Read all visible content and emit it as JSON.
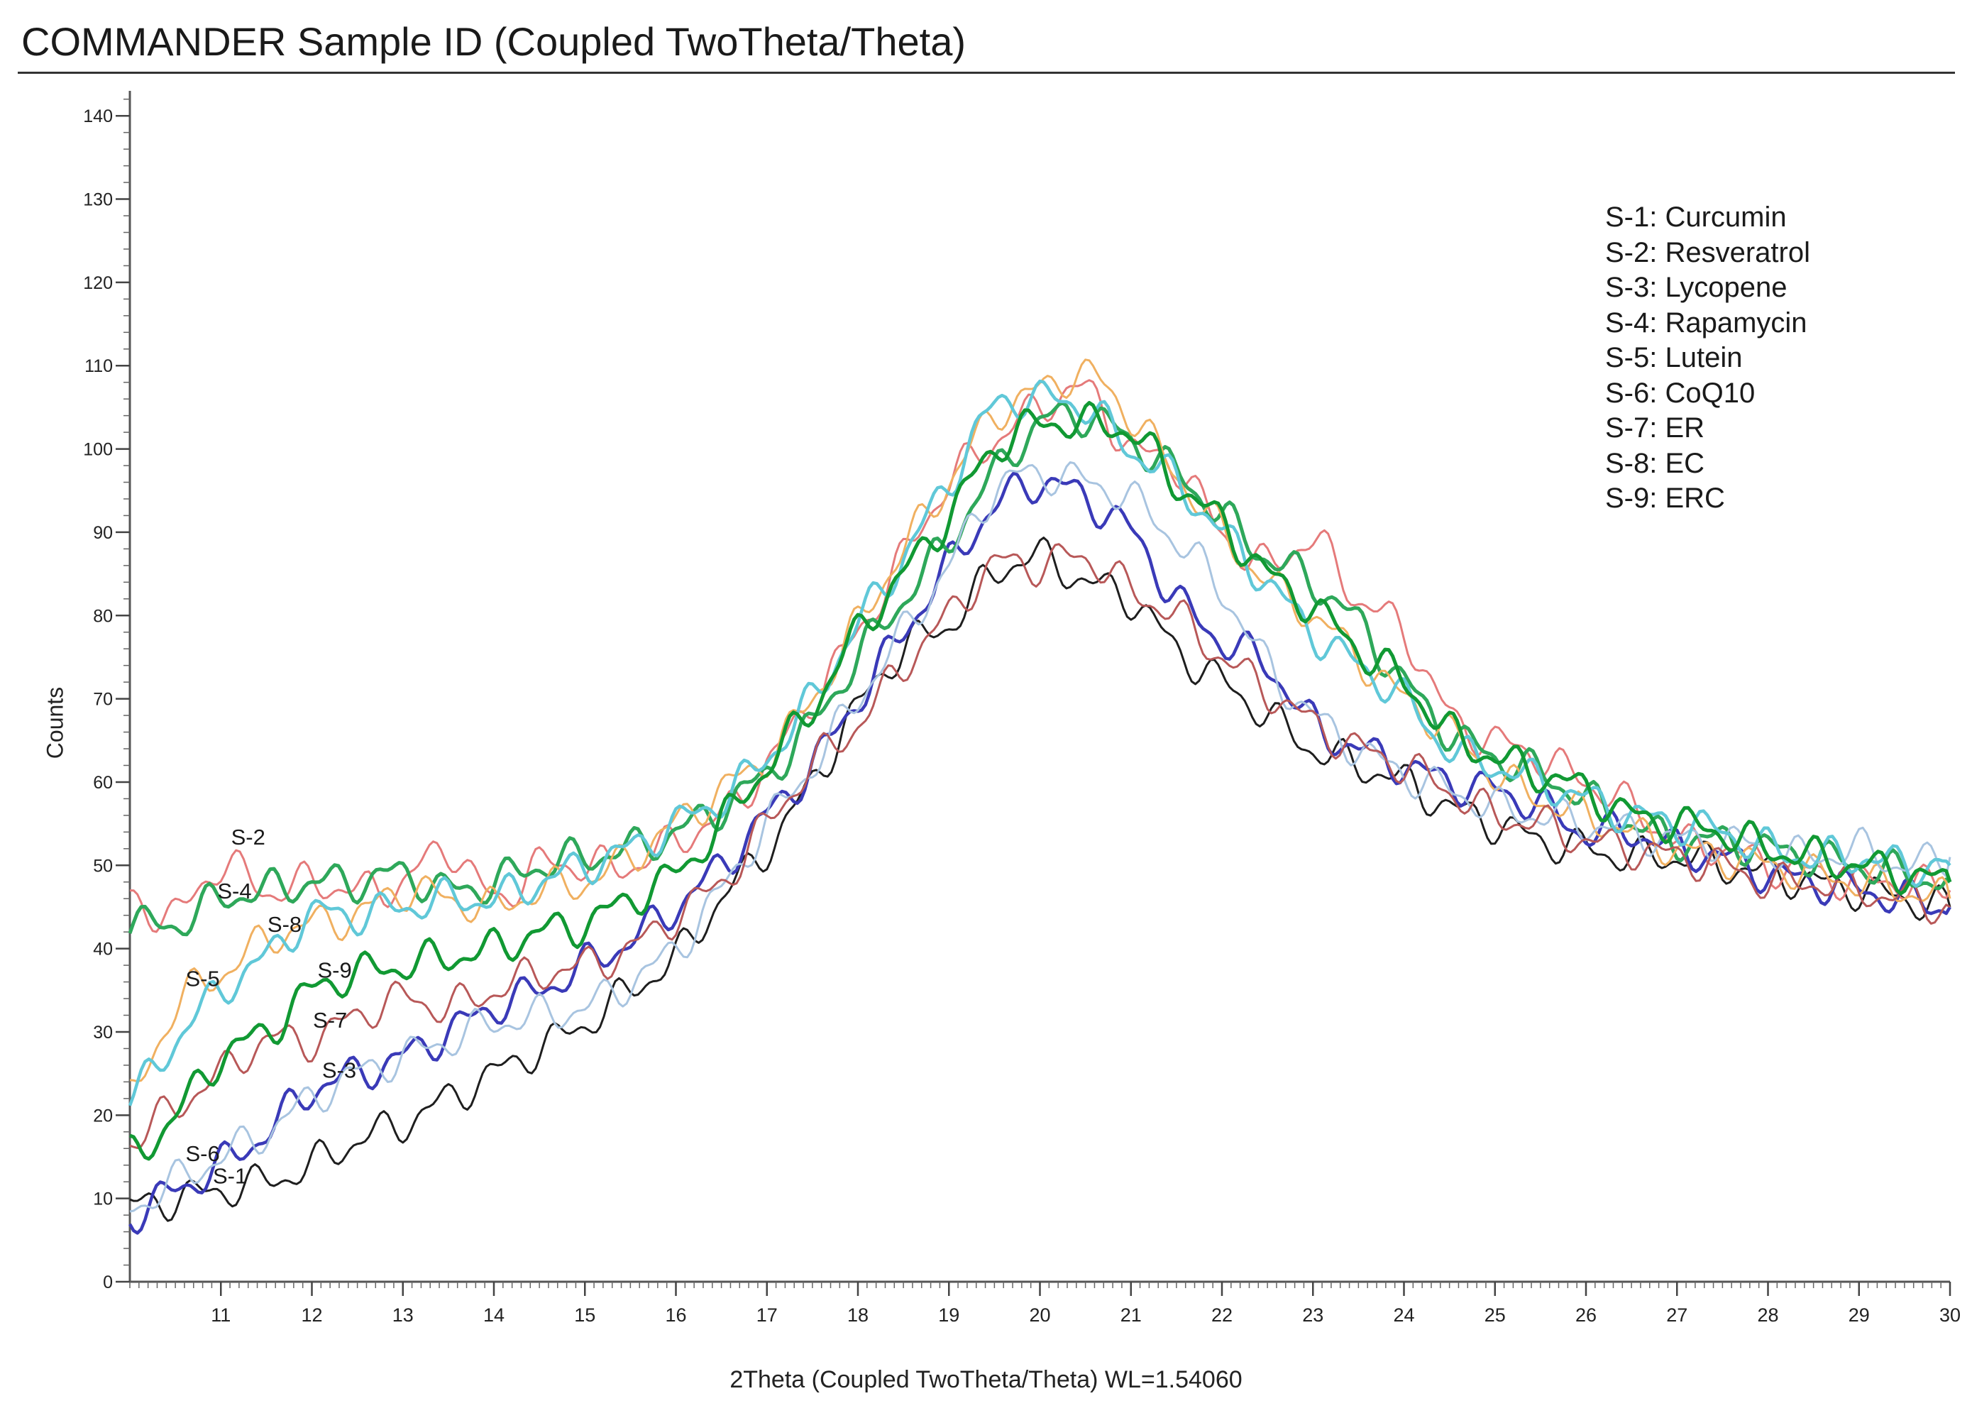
{
  "chart_data": {
    "type": "line",
    "title": "COMMANDER Sample ID (Coupled TwoTheta/Theta)",
    "xlabel": "2Theta (Coupled TwoTheta/Theta) WL=1.54060",
    "ylabel": "Counts",
    "xlim": [
      10,
      30
    ],
    "ylim": [
      0,
      143
    ],
    "xticks": [
      "11",
      "12",
      "13",
      "14",
      "15",
      "16",
      "17",
      "18",
      "19",
      "20",
      "21",
      "22",
      "23",
      "24",
      "25",
      "26",
      "27",
      "28",
      "29",
      "30"
    ],
    "yticks": [
      "0",
      "10",
      "20",
      "30",
      "40",
      "50",
      "60",
      "70",
      "80",
      "90",
      "100",
      "110",
      "120",
      "130",
      "140"
    ],
    "legend": [
      "S-1: Curcumin",
      "S-2: Resveratrol",
      "S-3: Lycopene",
      "S-4: Rapamycin",
      "S-5: Lutein",
      "S-6: CoQ10",
      "S-7: ER",
      "S-8: EC",
      "S-9: ERC"
    ],
    "x": [
      10.0,
      10.5,
      11.0,
      11.5,
      12.0,
      12.5,
      13.0,
      13.5,
      14.0,
      14.5,
      15.0,
      15.5,
      16.0,
      16.5,
      17.0,
      17.5,
      18.0,
      18.5,
      19.0,
      19.5,
      20.0,
      20.5,
      21.0,
      21.5,
      22.0,
      22.5,
      23.0,
      23.5,
      24.0,
      24.5,
      25.0,
      25.5,
      26.0,
      26.5,
      27.0,
      27.5,
      28.0,
      28.5,
      29.0,
      29.5,
      30.0
    ],
    "series": [
      {
        "name": "S-1",
        "color": "#1e1e1e",
        "values": [
          9,
          10,
          11,
          12,
          14,
          17,
          19,
          22,
          25,
          28,
          31,
          35,
          39,
          46,
          52,
          60,
          69,
          76,
          79,
          85,
          87,
          84,
          82,
          76,
          72,
          68,
          64,
          62,
          60,
          57,
          55,
          53,
          52,
          51,
          51,
          50,
          49,
          48,
          47,
          46,
          45
        ]
      },
      {
        "name": "S-2",
        "color": "#e57a7a",
        "values": [
          46,
          44,
          50,
          47,
          48,
          47,
          48,
          52,
          46,
          50,
          50,
          50,
          53,
          56,
          62,
          70,
          78,
          87,
          96,
          101,
          105,
          107,
          100,
          98,
          90,
          86,
          89,
          82,
          78,
          68,
          65,
          63,
          60,
          57,
          53,
          52,
          50,
          49,
          48,
          48,
          47
        ]
      },
      {
        "name": "S-3",
        "color": "#3a3ab8",
        "values": [
          8,
          11,
          14,
          18,
          23,
          25,
          27,
          30,
          33,
          35,
          38,
          41,
          45,
          50,
          56,
          62,
          70,
          78,
          86,
          93,
          96,
          94,
          90,
          82,
          77,
          74,
          67,
          64,
          62,
          60,
          59,
          57,
          54,
          54,
          52,
          51,
          49,
          48,
          47,
          46,
          45
        ]
      },
      {
        "name": "S-4",
        "color": "#2ea85a",
        "values": [
          43,
          43,
          46,
          47,
          48,
          48,
          49,
          47,
          48,
          50,
          51,
          52,
          54,
          57,
          61,
          67,
          75,
          82,
          89,
          97,
          103,
          104,
          101,
          97,
          92,
          87,
          84,
          79,
          72,
          66,
          63,
          61,
          58,
          55,
          53,
          53,
          52,
          51,
          50,
          49,
          48
        ]
      },
      {
        "name": "S-5",
        "color": "#f0b060",
        "values": [
          22,
          33,
          37,
          41,
          43,
          44,
          47,
          46,
          45,
          47,
          48,
          51,
          55,
          59,
          63,
          70,
          79,
          88,
          96,
          104,
          107,
          109,
          104,
          97,
          90,
          84,
          80,
          75,
          70,
          66,
          61,
          58,
          56,
          54,
          52,
          51,
          50,
          49,
          48,
          47,
          46
        ]
      },
      {
        "name": "S-6",
        "color": "#a8c4e0",
        "values": [
          9,
          12,
          15,
          18,
          22,
          25,
          27,
          29,
          31,
          32,
          33,
          36,
          40,
          47,
          55,
          62,
          70,
          78,
          86,
          95,
          97,
          96,
          94,
          89,
          83,
          74,
          68,
          64,
          61,
          59,
          57,
          56,
          55,
          54,
          53,
          53,
          52,
          51,
          52,
          50,
          51
        ]
      },
      {
        "name": "S-7",
        "color": "#b85858",
        "values": [
          17,
          21,
          25,
          29,
          29,
          32,
          34,
          33,
          35,
          37,
          38,
          40,
          44,
          48,
          55,
          62,
          67,
          74,
          80,
          86,
          86,
          87,
          83,
          80,
          75,
          71,
          67,
          64,
          62,
          59,
          56,
          55,
          53,
          52,
          51,
          50,
          48,
          48,
          47,
          46,
          45
        ]
      },
      {
        "name": "S-8",
        "color": "#60c8d8",
        "values": [
          22,
          29,
          35,
          39,
          44,
          44,
          45,
          46,
          46,
          48,
          50,
          52,
          55,
          58,
          63,
          70,
          79,
          87,
          96,
          105,
          106,
          105,
          100,
          96,
          90,
          84,
          78,
          74,
          70,
          64,
          62,
          60,
          58,
          56,
          55,
          54,
          52,
          51,
          51,
          50,
          50
        ]
      },
      {
        "name": "S-9",
        "color": "#119933",
        "values": [
          15,
          20,
          27,
          30,
          35,
          37,
          38,
          39,
          40,
          42,
          43,
          46,
          49,
          55,
          62,
          69,
          78,
          85,
          92,
          100,
          103,
          103,
          102,
          96,
          91,
          85,
          81,
          76,
          72,
          66,
          63,
          61,
          59,
          56,
          55,
          54,
          52,
          51,
          50,
          49,
          48
        ]
      }
    ],
    "annotations": [
      {
        "text": "S-2",
        "x": 11.3,
        "y": 52.5
      },
      {
        "text": "S-4",
        "x": 11.15,
        "y": 46
      },
      {
        "text": "S-8",
        "x": 11.7,
        "y": 42
      },
      {
        "text": "S-5",
        "x": 10.8,
        "y": 35.5
      },
      {
        "text": "S-9",
        "x": 12.25,
        "y": 36.5
      },
      {
        "text": "S-7",
        "x": 12.2,
        "y": 30.5
      },
      {
        "text": "S-3",
        "x": 12.3,
        "y": 24.5
      },
      {
        "text": "S-6",
        "x": 10.8,
        "y": 14.5
      },
      {
        "text": "S-1",
        "x": 11.1,
        "y": 11.8
      }
    ]
  }
}
